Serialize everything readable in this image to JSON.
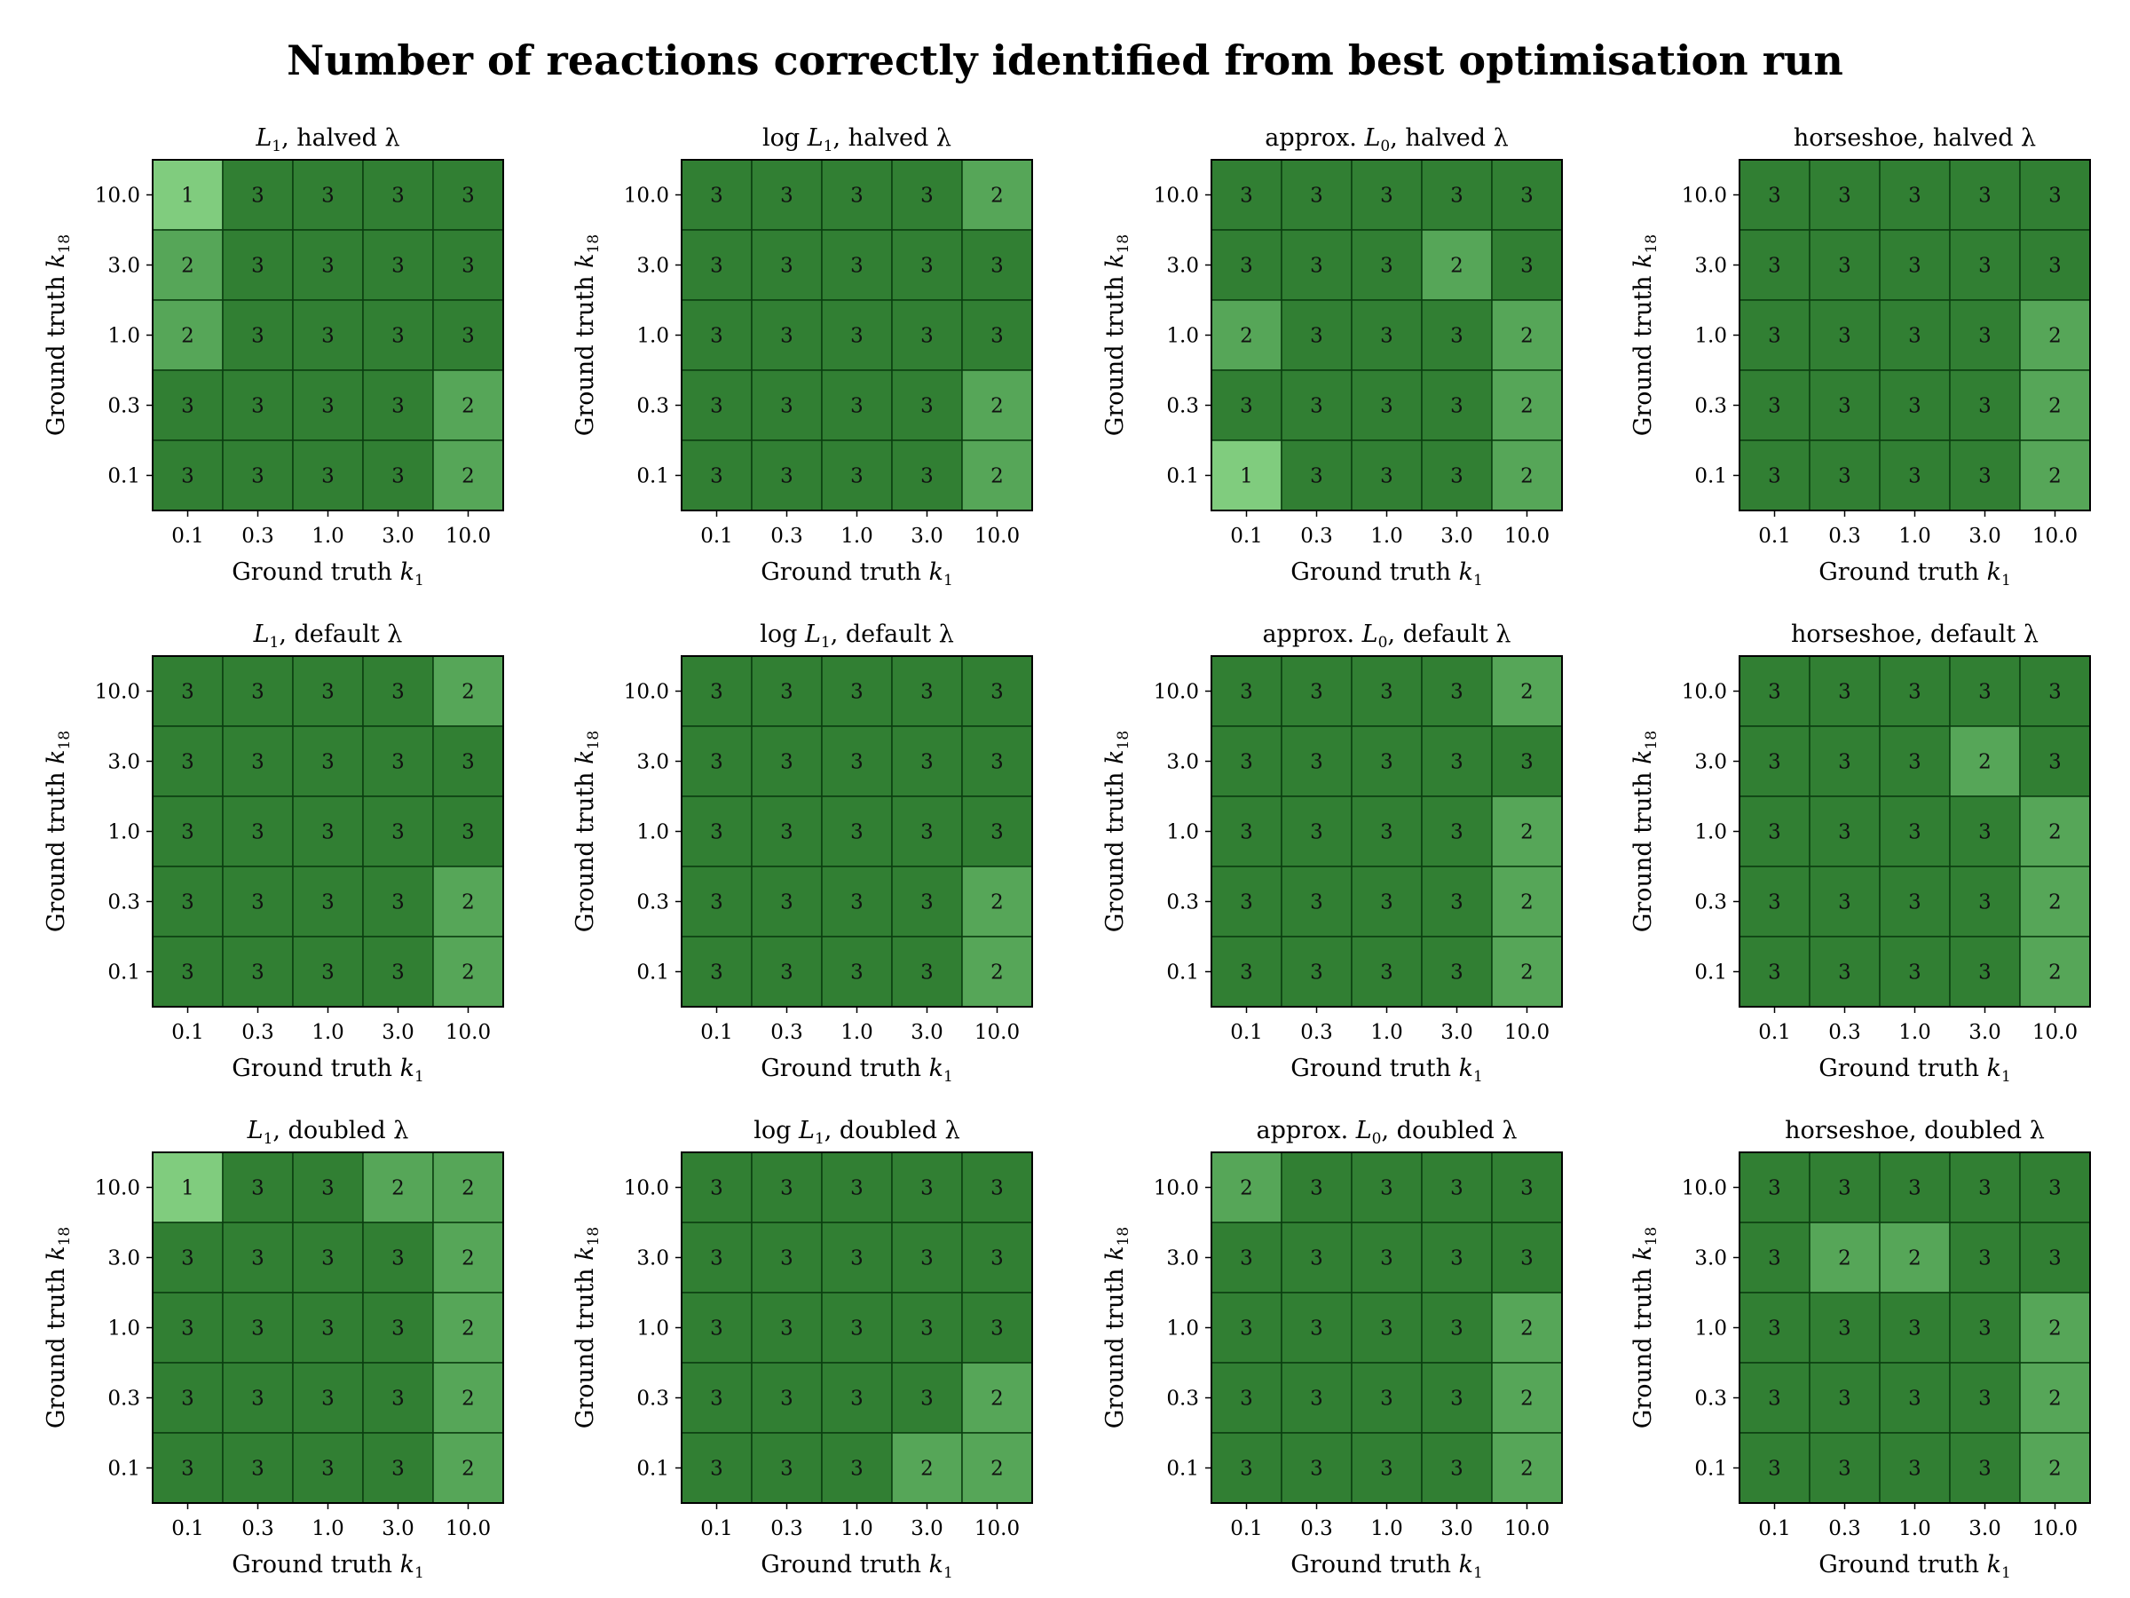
{
  "figure_title": "Number of reactions correctly identified from best optimisation run",
  "colors": {
    "3": "#317f33",
    "2": "#56a658",
    "1": "#80cc7e",
    "cell_border": "#0b3d10"
  },
  "chart_data": [
    {
      "type": "heatmap",
      "title": "L1, halved λ",
      "title_parts": [
        "",
        "L",
        "1",
        ", halved λ"
      ],
      "xlabel": "Ground truth k1",
      "ylabel": "Ground truth k18",
      "x": [
        "0.1",
        "0.3",
        "1.0",
        "3.0",
        "10.0"
      ],
      "y": [
        "10.0",
        "3.0",
        "1.0",
        "0.3",
        "0.1"
      ],
      "values": [
        [
          1,
          3,
          3,
          3,
          3
        ],
        [
          2,
          3,
          3,
          3,
          3
        ],
        [
          2,
          3,
          3,
          3,
          3
        ],
        [
          3,
          3,
          3,
          3,
          2
        ],
        [
          3,
          3,
          3,
          3,
          2
        ]
      ]
    },
    {
      "type": "heatmap",
      "title": "log L1, halved λ",
      "title_parts": [
        "log ",
        "L",
        "1",
        ", halved λ"
      ],
      "xlabel": "Ground truth k1",
      "ylabel": "Ground truth k18",
      "x": [
        "0.1",
        "0.3",
        "1.0",
        "3.0",
        "10.0"
      ],
      "y": [
        "10.0",
        "3.0",
        "1.0",
        "0.3",
        "0.1"
      ],
      "values": [
        [
          3,
          3,
          3,
          3,
          2
        ],
        [
          3,
          3,
          3,
          3,
          3
        ],
        [
          3,
          3,
          3,
          3,
          3
        ],
        [
          3,
          3,
          3,
          3,
          2
        ],
        [
          3,
          3,
          3,
          3,
          2
        ]
      ]
    },
    {
      "type": "heatmap",
      "title": "approx. L0, halved λ",
      "title_parts": [
        "approx. ",
        "L",
        "0",
        ", halved λ"
      ],
      "xlabel": "Ground truth k1",
      "ylabel": "Ground truth k18",
      "x": [
        "0.1",
        "0.3",
        "1.0",
        "3.0",
        "10.0"
      ],
      "y": [
        "10.0",
        "3.0",
        "1.0",
        "0.3",
        "0.1"
      ],
      "values": [
        [
          3,
          3,
          3,
          3,
          3
        ],
        [
          3,
          3,
          3,
          2,
          3
        ],
        [
          2,
          3,
          3,
          3,
          2
        ],
        [
          3,
          3,
          3,
          3,
          2
        ],
        [
          1,
          3,
          3,
          3,
          2
        ]
      ]
    },
    {
      "type": "heatmap",
      "title": "horseshoe, halved λ",
      "title_parts": [
        "horseshoe, halved λ",
        "",
        "",
        ""
      ],
      "xlabel": "Ground truth k1",
      "ylabel": "Ground truth k18",
      "x": [
        "0.1",
        "0.3",
        "1.0",
        "3.0",
        "10.0"
      ],
      "y": [
        "10.0",
        "3.0",
        "1.0",
        "0.3",
        "0.1"
      ],
      "values": [
        [
          3,
          3,
          3,
          3,
          3
        ],
        [
          3,
          3,
          3,
          3,
          3
        ],
        [
          3,
          3,
          3,
          3,
          2
        ],
        [
          3,
          3,
          3,
          3,
          2
        ],
        [
          3,
          3,
          3,
          3,
          2
        ]
      ]
    },
    {
      "type": "heatmap",
      "title": "L1, default λ",
      "title_parts": [
        "",
        "L",
        "1",
        ", default λ"
      ],
      "xlabel": "Ground truth k1",
      "ylabel": "Ground truth k18",
      "x": [
        "0.1",
        "0.3",
        "1.0",
        "3.0",
        "10.0"
      ],
      "y": [
        "10.0",
        "3.0",
        "1.0",
        "0.3",
        "0.1"
      ],
      "values": [
        [
          3,
          3,
          3,
          3,
          2
        ],
        [
          3,
          3,
          3,
          3,
          3
        ],
        [
          3,
          3,
          3,
          3,
          3
        ],
        [
          3,
          3,
          3,
          3,
          2
        ],
        [
          3,
          3,
          3,
          3,
          2
        ]
      ]
    },
    {
      "type": "heatmap",
      "title": "log L1, default λ",
      "title_parts": [
        "log ",
        "L",
        "1",
        ", default λ"
      ],
      "xlabel": "Ground truth k1",
      "ylabel": "Ground truth k18",
      "x": [
        "0.1",
        "0.3",
        "1.0",
        "3.0",
        "10.0"
      ],
      "y": [
        "10.0",
        "3.0",
        "1.0",
        "0.3",
        "0.1"
      ],
      "values": [
        [
          3,
          3,
          3,
          3,
          3
        ],
        [
          3,
          3,
          3,
          3,
          3
        ],
        [
          3,
          3,
          3,
          3,
          3
        ],
        [
          3,
          3,
          3,
          3,
          2
        ],
        [
          3,
          3,
          3,
          3,
          2
        ]
      ]
    },
    {
      "type": "heatmap",
      "title": "approx. L0, default λ",
      "title_parts": [
        "approx. ",
        "L",
        "0",
        ", default λ"
      ],
      "xlabel": "Ground truth k1",
      "ylabel": "Ground truth k18",
      "x": [
        "0.1",
        "0.3",
        "1.0",
        "3.0",
        "10.0"
      ],
      "y": [
        "10.0",
        "3.0",
        "1.0",
        "0.3",
        "0.1"
      ],
      "values": [
        [
          3,
          3,
          3,
          3,
          2
        ],
        [
          3,
          3,
          3,
          3,
          3
        ],
        [
          3,
          3,
          3,
          3,
          2
        ],
        [
          3,
          3,
          3,
          3,
          2
        ],
        [
          3,
          3,
          3,
          3,
          2
        ]
      ]
    },
    {
      "type": "heatmap",
      "title": "horseshoe, default λ",
      "title_parts": [
        "horseshoe, default λ",
        "",
        "",
        ""
      ],
      "xlabel": "Ground truth k1",
      "ylabel": "Ground truth k18",
      "x": [
        "0.1",
        "0.3",
        "1.0",
        "3.0",
        "10.0"
      ],
      "y": [
        "10.0",
        "3.0",
        "1.0",
        "0.3",
        "0.1"
      ],
      "values": [
        [
          3,
          3,
          3,
          3,
          3
        ],
        [
          3,
          3,
          3,
          2,
          3
        ],
        [
          3,
          3,
          3,
          3,
          2
        ],
        [
          3,
          3,
          3,
          3,
          2
        ],
        [
          3,
          3,
          3,
          3,
          2
        ]
      ]
    },
    {
      "type": "heatmap",
      "title": "L1, doubled λ",
      "title_parts": [
        "",
        "L",
        "1",
        ", doubled λ"
      ],
      "xlabel": "Ground truth k1",
      "ylabel": "Ground truth k18",
      "x": [
        "0.1",
        "0.3",
        "1.0",
        "3.0",
        "10.0"
      ],
      "y": [
        "10.0",
        "3.0",
        "1.0",
        "0.3",
        "0.1"
      ],
      "values": [
        [
          1,
          3,
          3,
          2,
          2
        ],
        [
          3,
          3,
          3,
          3,
          2
        ],
        [
          3,
          3,
          3,
          3,
          2
        ],
        [
          3,
          3,
          3,
          3,
          2
        ],
        [
          3,
          3,
          3,
          3,
          2
        ]
      ]
    },
    {
      "type": "heatmap",
      "title": "log L1, doubled λ",
      "title_parts": [
        "log ",
        "L",
        "1",
        ", doubled λ"
      ],
      "xlabel": "Ground truth k1",
      "ylabel": "Ground truth k18",
      "x": [
        "0.1",
        "0.3",
        "1.0",
        "3.0",
        "10.0"
      ],
      "y": [
        "10.0",
        "3.0",
        "1.0",
        "0.3",
        "0.1"
      ],
      "values": [
        [
          3,
          3,
          3,
          3,
          3
        ],
        [
          3,
          3,
          3,
          3,
          3
        ],
        [
          3,
          3,
          3,
          3,
          3
        ],
        [
          3,
          3,
          3,
          3,
          2
        ],
        [
          3,
          3,
          3,
          2,
          2
        ]
      ]
    },
    {
      "type": "heatmap",
      "title": "approx. L0, doubled λ",
      "title_parts": [
        "approx. ",
        "L",
        "0",
        ", doubled λ"
      ],
      "xlabel": "Ground truth k1",
      "ylabel": "Ground truth k18",
      "x": [
        "0.1",
        "0.3",
        "1.0",
        "3.0",
        "10.0"
      ],
      "y": [
        "10.0",
        "3.0",
        "1.0",
        "0.3",
        "0.1"
      ],
      "values": [
        [
          2,
          3,
          3,
          3,
          3
        ],
        [
          3,
          3,
          3,
          3,
          3
        ],
        [
          3,
          3,
          3,
          3,
          2
        ],
        [
          3,
          3,
          3,
          3,
          2
        ],
        [
          3,
          3,
          3,
          3,
          2
        ]
      ]
    },
    {
      "type": "heatmap",
      "title": "horseshoe, doubled λ",
      "title_parts": [
        "horseshoe, doubled λ",
        "",
        "",
        ""
      ],
      "xlabel": "Ground truth k1",
      "ylabel": "Ground truth k18",
      "x": [
        "0.1",
        "0.3",
        "1.0",
        "3.0",
        "10.0"
      ],
      "y": [
        "10.0",
        "3.0",
        "1.0",
        "0.3",
        "0.1"
      ],
      "values": [
        [
          3,
          3,
          3,
          3,
          3
        ],
        [
          3,
          2,
          2,
          3,
          3
        ],
        [
          3,
          3,
          3,
          3,
          2
        ],
        [
          3,
          3,
          3,
          3,
          2
        ],
        [
          3,
          3,
          3,
          3,
          2
        ]
      ]
    }
  ]
}
